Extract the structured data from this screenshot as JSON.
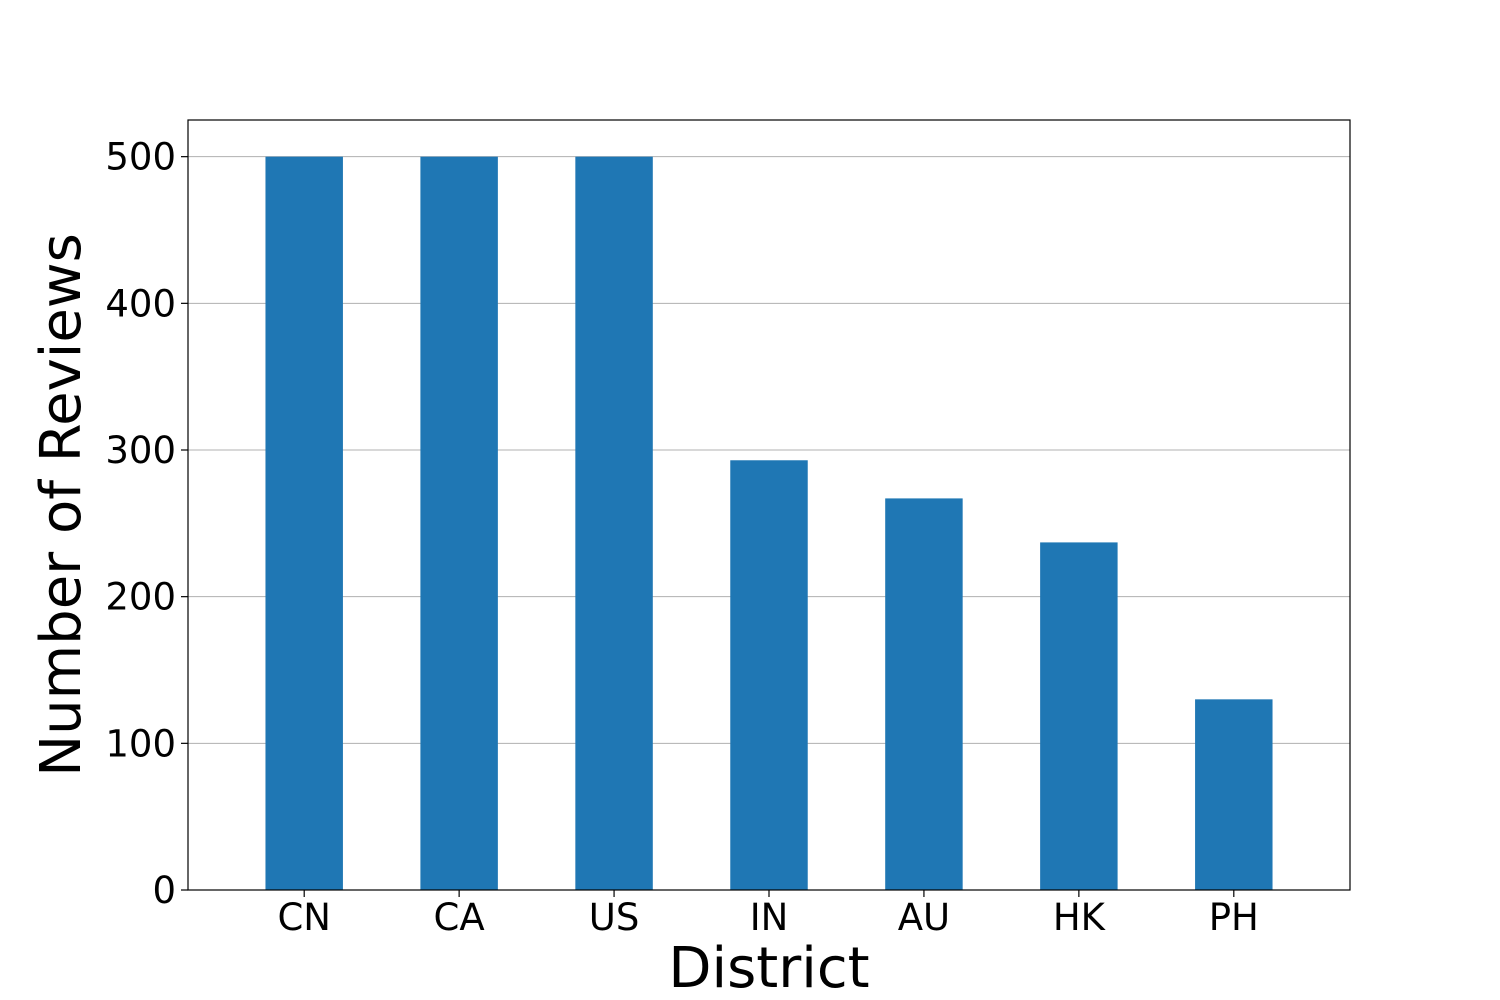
{
  "chart_data": {
    "type": "bar",
    "categories": [
      "CN",
      "CA",
      "US",
      "IN",
      "AU",
      "HK",
      "PH"
    ],
    "values": [
      500,
      500,
      500,
      293,
      267,
      237,
      130
    ],
    "title": "",
    "xlabel": "District",
    "ylabel": "Number of Reviews",
    "ylim": [
      0,
      525
    ],
    "yticks": [
      0,
      100,
      200,
      300,
      400,
      500
    ],
    "grid": "horizontal",
    "legend": "none",
    "colors": {
      "bar": "#1f77b4"
    }
  }
}
